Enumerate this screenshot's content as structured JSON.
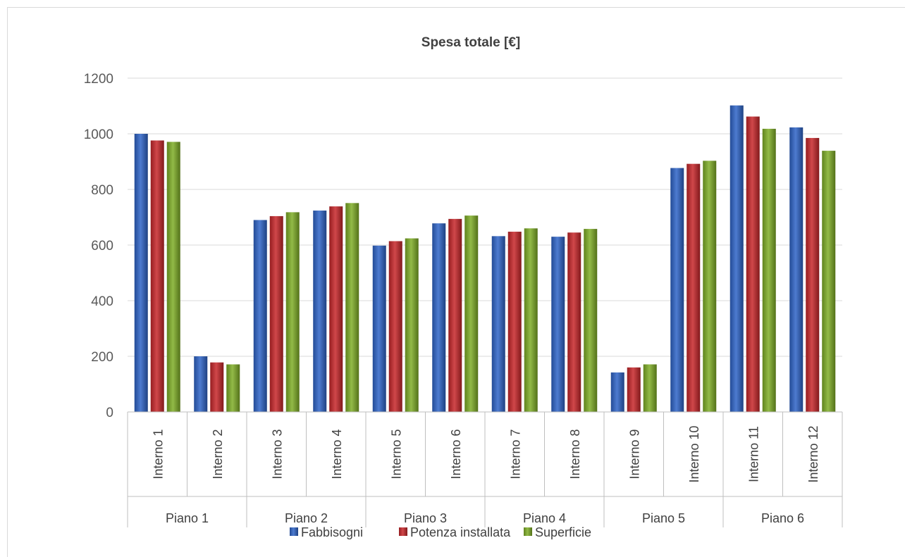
{
  "chart_data": {
    "type": "bar",
    "title": "Spesa totale [€]",
    "xlabel": "",
    "ylabel": "",
    "ylim": [
      0,
      1200
    ],
    "yticks": [
      "0",
      "200",
      "400",
      "600",
      "800",
      "1000",
      "1200"
    ],
    "grid": true,
    "legend_position": "bottom",
    "categories": [
      "Interno 1",
      "Interno 2",
      "Interno 3",
      "Interno 4",
      "Interno 5",
      "Interno 6",
      "Interno 7",
      "Interno 8",
      "Interno 9",
      "Interno 10",
      "Interno 11",
      "Interno 12"
    ],
    "groups": [
      {
        "label": "Piano 1",
        "count": 2
      },
      {
        "label": "Piano 2",
        "count": 2
      },
      {
        "label": "Piano 3",
        "count": 2
      },
      {
        "label": "Piano 4",
        "count": 2
      },
      {
        "label": "Piano 5",
        "count": 2
      },
      {
        "label": "Piano 6",
        "count": 2
      }
    ],
    "series": [
      {
        "name": "Fabbisogni",
        "color": "#2e64c8",
        "values": [
          1000,
          200,
          690,
          724,
          598,
          678,
          632,
          630,
          142,
          877,
          1102,
          1023
        ]
      },
      {
        "name": "Potenza installata",
        "color": "#c8262a",
        "values": [
          976,
          178,
          704,
          739,
          614,
          694,
          648,
          645,
          160,
          892,
          1062,
          985
        ]
      },
      {
        "name": "Superficie",
        "color": "#7fae26",
        "values": [
          971,
          171,
          718,
          751,
          624,
          706,
          660,
          658,
          171,
          903,
          1018,
          939
        ]
      }
    ]
  }
}
